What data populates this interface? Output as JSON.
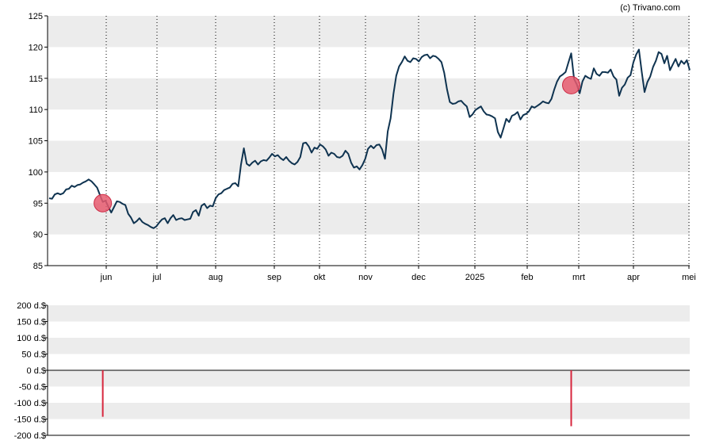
{
  "credit": "(c) Trivano.com",
  "colors": {
    "price_line": "#0f3350",
    "band": "#ececec",
    "marker_fill": "#e65a6e",
    "marker_stroke": "#cc2b45",
    "bar": "#d7263d",
    "axis": "#000000"
  },
  "chart_data": [
    {
      "type": "line",
      "title": "",
      "xlabel": "",
      "ylabel": "",
      "ylim": [
        85,
        125
      ],
      "yticks": [
        85,
        90,
        95,
        100,
        105,
        110,
        115,
        120,
        125
      ],
      "ytick_labels": [
        "85",
        "90",
        "95",
        "100",
        "105",
        "110",
        "115",
        "120",
        "125"
      ],
      "xticks": [
        "jun",
        "jul",
        "aug",
        "sep",
        "okt",
        "nov",
        "dec",
        "2025",
        "feb",
        "mrt",
        "apr",
        "mei"
      ],
      "grid": "alternating horizontal bands, dotted vertical lines at month ticks",
      "series": [
        {
          "values": [
            95.8,
            95.7,
            96.4,
            96.6,
            96.4,
            96.6,
            97.2,
            97.3,
            97.8,
            97.6,
            97.9,
            98.0,
            98.3,
            98.5,
            98.8,
            98.5,
            98.0,
            97.5,
            96.3,
            95.2,
            95.4,
            94.4,
            93.5,
            94.4,
            95.3,
            95.2,
            94.9,
            94.7,
            93.3,
            92.7,
            91.8,
            92.1,
            92.6,
            92.0,
            91.7,
            91.5,
            91.2,
            91.0,
            91.3,
            91.9,
            92.4,
            92.6,
            91.8,
            92.6,
            93.1,
            92.3,
            92.5,
            92.6,
            92.3,
            92.4,
            92.5,
            93.6,
            93.9,
            93.0,
            94.6,
            94.9,
            94.2,
            94.6,
            94.5,
            95.8,
            96.4,
            96.6,
            97.1,
            97.3,
            97.5,
            98.1,
            98.2,
            97.7,
            101.2,
            103.8,
            101.3,
            101.0,
            101.5,
            101.8,
            101.2,
            101.7,
            101.9,
            101.8,
            102.3,
            102.9,
            102.5,
            102.7,
            102.2,
            101.9,
            102.4,
            101.8,
            101.4,
            101.2,
            101.6,
            102.4,
            104.6,
            104.7,
            104.1,
            103.1,
            103.9,
            103.7,
            104.4,
            104.1,
            103.6,
            102.6,
            103.1,
            102.9,
            102.4,
            102.3,
            102.6,
            103.4,
            102.9,
            101.5,
            100.7,
            100.9,
            100.4,
            101.1,
            102.1,
            103.7,
            104.2,
            103.8,
            104.3,
            104.4,
            103.6,
            102.1,
            106.5,
            108.6,
            112.5,
            115.4,
            116.9,
            117.6,
            118.5,
            117.8,
            117.6,
            118.2,
            118.1,
            117.7,
            118.4,
            118.7,
            118.8,
            118.2,
            118.6,
            118.5,
            118.1,
            117.6,
            115.9,
            113.2,
            111.2,
            110.9,
            111.0,
            111.3,
            111.4,
            110.9,
            110.5,
            108.8,
            109.2,
            109.9,
            110.2,
            110.5,
            109.7,
            109.2,
            109.1,
            108.9,
            108.6,
            106.4,
            105.5,
            107.0,
            108.5,
            108.0,
            109.0,
            109.2,
            109.6,
            108.4,
            109.1,
            109.3,
            109.7,
            110.5,
            110.3,
            110.6,
            110.9,
            111.3,
            111.1,
            111.0,
            111.7,
            113.2,
            114.5,
            115.3,
            115.6,
            116.0,
            117.5,
            119.0,
            114.9,
            114.0,
            112.6,
            114.5,
            115.4,
            115.1,
            114.9,
            116.6,
            115.7,
            115.4,
            116.0,
            116.0,
            115.9,
            116.4,
            115.3,
            114.8,
            112.2,
            113.5,
            114.0,
            115.1,
            115.5,
            117.5,
            118.8,
            119.6,
            116.0,
            112.8,
            114.4,
            115.3,
            116.8,
            117.8,
            119.2,
            118.9,
            117.4,
            118.6,
            116.3,
            117.2,
            118.1,
            116.9,
            117.8,
            117.3,
            117.9,
            116.3
          ]
        }
      ],
      "markers": [
        {
          "x_index": 19,
          "value": 95.0
        },
        {
          "x_index": 185,
          "value": 113.9
        }
      ]
    },
    {
      "type": "bar",
      "title": "",
      "xlabel": "",
      "ylabel": "",
      "ylim": [
        -200,
        200
      ],
      "yticks": [
        200,
        150,
        100,
        50,
        0,
        -50,
        -100,
        -150,
        -200
      ],
      "ytick_labels": [
        "200 d.$",
        "150 d.$",
        "100 d.$",
        "50 d.$",
        "0 d.$",
        "-50 d.$",
        "-100 d.$",
        "-150 d.$",
        "-200 d.$"
      ],
      "grid": "alternating horizontal bands",
      "bars": [
        {
          "x_index": 19,
          "value": -143
        },
        {
          "x_index": 185,
          "value": -172
        }
      ]
    }
  ]
}
